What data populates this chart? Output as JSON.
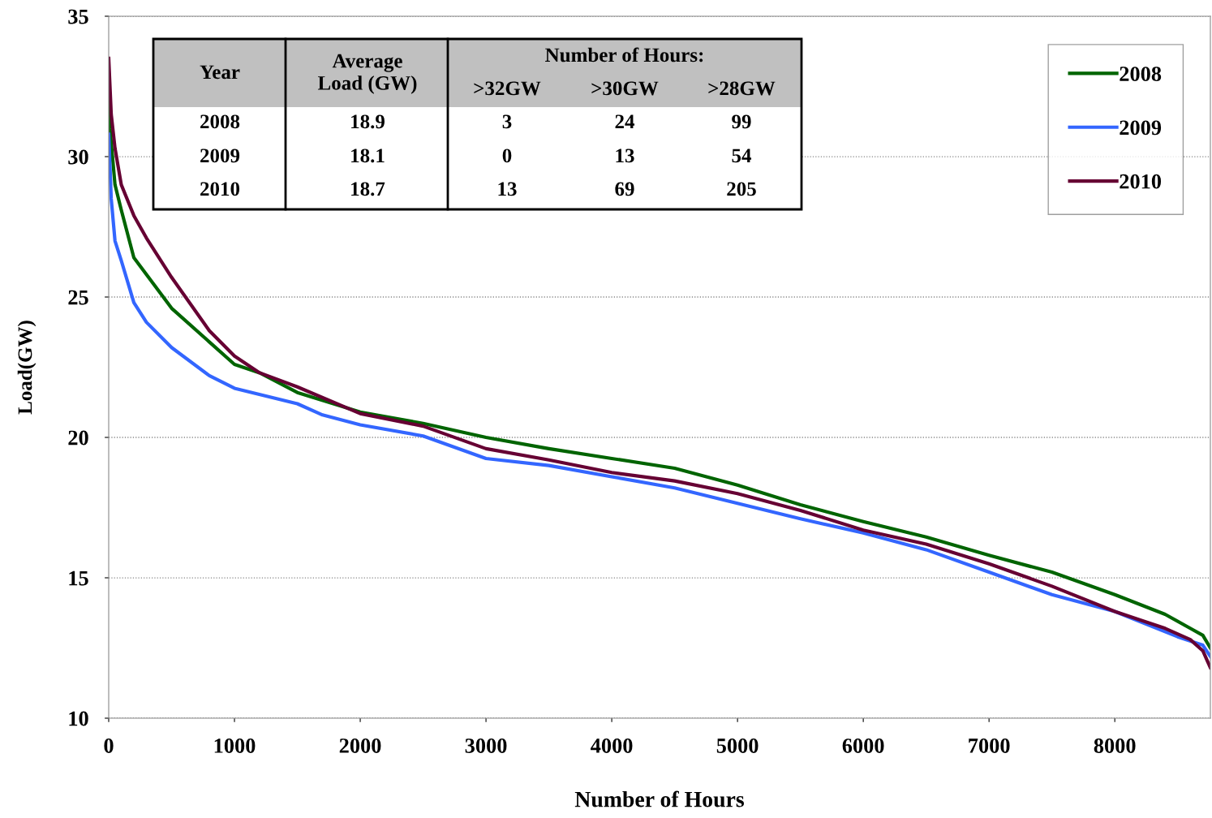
{
  "chart_data": {
    "type": "line",
    "xlabel": "Number of Hours",
    "ylabel": "Load(GW)",
    "xlim": [
      0,
      8760
    ],
    "xticks": [
      0,
      1000,
      2000,
      3000,
      4000,
      5000,
      6000,
      7000,
      8000
    ],
    "ylim": [
      10,
      35
    ],
    "yticks": [
      10,
      15,
      20,
      25,
      30,
      35
    ],
    "grid": "y",
    "legend": "top right",
    "line_style": "solid",
    "marker": "none",
    "series": [
      {
        "name": "2008",
        "color": "#006400",
        "x": [
          0,
          10,
          50,
          100,
          200,
          300,
          500,
          800,
          1000,
          1200,
          1500,
          2000,
          2500,
          3000,
          3500,
          4000,
          4500,
          5000,
          5500,
          6000,
          6500,
          7000,
          7500,
          8000,
          8400,
          8600,
          8700,
          8760
        ],
        "values": [
          32.6,
          31,
          29.0,
          28.1,
          26.4,
          25.8,
          24.6,
          23.4,
          22.6,
          22.3,
          21.6,
          20.9,
          20.5,
          20.0,
          19.6,
          19.25,
          18.9,
          18.3,
          17.6,
          17.0,
          16.45,
          15.8,
          15.2,
          14.4,
          13.7,
          13.2,
          12.95,
          12.5
        ]
      },
      {
        "name": "2009",
        "color": "#3366ff",
        "x": [
          0,
          20,
          50,
          100,
          200,
          300,
          500,
          800,
          1000,
          1500,
          1700,
          2000,
          2500,
          3000,
          3500,
          4000,
          4500,
          5000,
          5500,
          6000,
          6500,
          7000,
          7500,
          8000,
          8500,
          8700,
          8760
        ],
        "values": [
          30.8,
          28.5,
          27.0,
          26.3,
          24.8,
          24.1,
          23.2,
          22.2,
          21.75,
          21.2,
          20.8,
          20.45,
          20.05,
          19.25,
          19.0,
          18.6,
          18.2,
          17.65,
          17.1,
          16.6,
          16.0,
          15.2,
          14.4,
          13.8,
          12.9,
          12.6,
          12.2
        ]
      },
      {
        "name": "2010",
        "color": "#660033",
        "x": [
          0,
          20,
          50,
          100,
          200,
          300,
          500,
          800,
          1000,
          1200,
          1500,
          2000,
          2500,
          3000,
          3500,
          4000,
          4500,
          5000,
          5500,
          6000,
          6500,
          7000,
          7500,
          8000,
          8400,
          8600,
          8700,
          8740,
          8760
        ],
        "values": [
          33.5,
          31.5,
          30.3,
          29.0,
          27.9,
          27.1,
          25.7,
          23.8,
          22.9,
          22.3,
          21.8,
          20.85,
          20.4,
          19.6,
          19.2,
          18.75,
          18.45,
          18.0,
          17.4,
          16.7,
          16.2,
          15.5,
          14.7,
          13.8,
          13.2,
          12.8,
          12.4,
          12.0,
          11.8
        ]
      }
    ],
    "annotations": [
      "Year",
      "Average\nLoad (GW)",
      "Number of Hours:",
      ">32GW",
      ">30GW",
      ">28GW",
      "2008",
      "18.9",
      "3",
      "24",
      "99",
      "2009",
      "18.1",
      "0",
      "13",
      "54",
      "2010",
      "18.7",
      "13",
      "69",
      "205"
    ]
  }
}
